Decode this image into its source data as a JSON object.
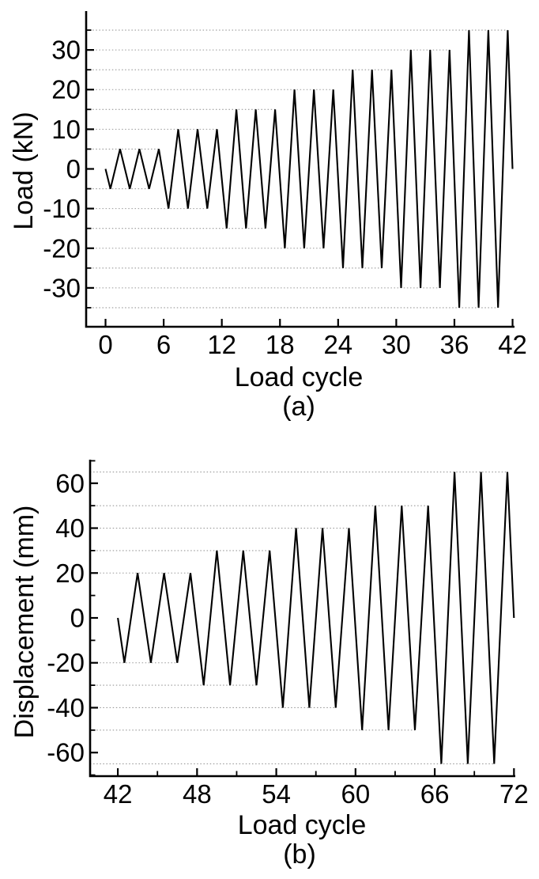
{
  "page": {
    "background": "#ffffff",
    "figure_type": "two-panel cyclic loading protocol figure"
  },
  "chart_data": [
    {
      "type": "line",
      "panel_label": "(a)",
      "xlabel": "Load cycle",
      "ylabel": "Load (kN)",
      "line_color": "#000000",
      "grid_color": "#999999",
      "grid_style": "dotted",
      "xlim": [
        -2,
        42.2
      ],
      "ylim": [
        -39.8,
        39.8
      ],
      "x_ticks": {
        "major": [
          0,
          6,
          12,
          18,
          24,
          30,
          36,
          42
        ],
        "labels": [
          "0",
          "6",
          "12",
          "18",
          "24",
          "30",
          "36",
          "42"
        ],
        "minor": []
      },
      "y_ticks": {
        "major": [
          -30,
          -20,
          -10,
          0,
          10,
          20,
          30
        ],
        "labels": [
          "-30",
          "-20",
          "-10",
          "0",
          "10",
          "20",
          "30"
        ],
        "minor_step": 5
      },
      "protocol": {
        "x_start": 0,
        "x_end": 42,
        "cycles_per_amplitude": 3,
        "amplitudes": [
          5,
          10,
          15,
          20,
          25,
          30,
          35
        ]
      },
      "points": [
        [
          0,
          0
        ],
        [
          0.5,
          -5
        ],
        [
          1.5,
          5
        ],
        [
          2.5,
          -5
        ],
        [
          3.5,
          5
        ],
        [
          4.5,
          -5
        ],
        [
          5.5,
          5
        ],
        [
          6.5,
          -10
        ],
        [
          7.5,
          10
        ],
        [
          8.5,
          -10
        ],
        [
          9.5,
          10
        ],
        [
          10.5,
          -10
        ],
        [
          11.5,
          10
        ],
        [
          12.5,
          -15
        ],
        [
          13.5,
          15
        ],
        [
          14.5,
          -15
        ],
        [
          15.5,
          15
        ],
        [
          16.5,
          -15
        ],
        [
          17.5,
          15
        ],
        [
          18.5,
          -20
        ],
        [
          19.5,
          20
        ],
        [
          20.5,
          -20
        ],
        [
          21.5,
          20
        ],
        [
          22.5,
          -20
        ],
        [
          23.5,
          20
        ],
        [
          24.5,
          -25
        ],
        [
          25.5,
          25
        ],
        [
          26.5,
          -25
        ],
        [
          27.5,
          25
        ],
        [
          28.5,
          -25
        ],
        [
          29.5,
          25
        ],
        [
          30.5,
          -30
        ],
        [
          31.5,
          30
        ],
        [
          32.5,
          -30
        ],
        [
          33.5,
          30
        ],
        [
          34.5,
          -30
        ],
        [
          35.5,
          30
        ],
        [
          36.5,
          -35
        ],
        [
          37.5,
          35
        ],
        [
          38.5,
          -35
        ],
        [
          39.5,
          35
        ],
        [
          40.5,
          -35
        ],
        [
          41.5,
          35
        ],
        [
          42,
          0
        ]
      ],
      "ref_lines": [
        [
          5,
          5.5
        ],
        [
          -5,
          4.5
        ],
        [
          10,
          11.5
        ],
        [
          -10,
          10.5
        ],
        [
          15,
          17.5
        ],
        [
          -15,
          16.5
        ],
        [
          20,
          23.5
        ],
        [
          -20,
          22.5
        ],
        [
          25,
          29.5
        ],
        [
          -25,
          28.5
        ],
        [
          30,
          35.5
        ],
        [
          -30,
          34.5
        ],
        [
          35,
          41.5
        ],
        [
          -35,
          40.5
        ]
      ]
    },
    {
      "type": "line",
      "panel_label": "(b)",
      "xlabel": "Load cycle",
      "ylabel": "Displacement (mm)",
      "line_color": "#000000",
      "grid_color": "#999999",
      "grid_style": "dotted",
      "xlim": [
        39.9,
        72.1
      ],
      "ylim": [
        -70.5,
        70.5
      ],
      "x_ticks": {
        "major": [
          42,
          48,
          54,
          60,
          66,
          72
        ],
        "labels": [
          "42",
          "48",
          "54",
          "60",
          "66",
          "72"
        ],
        "minor": [
          45,
          51,
          57,
          63,
          69
        ]
      },
      "y_ticks": {
        "major": [
          -60,
          -40,
          -20,
          0,
          20,
          40,
          60
        ],
        "labels": [
          "-60",
          "-40",
          "-20",
          "0",
          "20",
          "40",
          "60"
        ],
        "minor_step": 10
      },
      "protocol": {
        "x_start": 42,
        "x_end": 72,
        "cycles_per_amplitude": 3,
        "amplitudes": [
          20,
          30,
          40,
          50,
          65
        ]
      },
      "points": [
        [
          42,
          0
        ],
        [
          42.5,
          -20
        ],
        [
          43.5,
          20
        ],
        [
          44.5,
          -20
        ],
        [
          45.5,
          20
        ],
        [
          46.5,
          -20
        ],
        [
          47.5,
          20
        ],
        [
          48.5,
          -30
        ],
        [
          49.5,
          30
        ],
        [
          50.5,
          -30
        ],
        [
          51.5,
          30
        ],
        [
          52.5,
          -30
        ],
        [
          53.5,
          30
        ],
        [
          54.5,
          -40
        ],
        [
          55.5,
          40
        ],
        [
          56.5,
          -40
        ],
        [
          57.5,
          40
        ],
        [
          58.5,
          -40
        ],
        [
          59.5,
          40
        ],
        [
          60.5,
          -50
        ],
        [
          61.5,
          50
        ],
        [
          62.5,
          -50
        ],
        [
          63.5,
          50
        ],
        [
          64.5,
          -50
        ],
        [
          65.5,
          50
        ],
        [
          66.5,
          -65
        ],
        [
          67.5,
          65
        ],
        [
          68.5,
          -65
        ],
        [
          69.5,
          65
        ],
        [
          70.5,
          -65
        ],
        [
          71.5,
          65
        ],
        [
          72,
          0
        ]
      ],
      "ref_lines": [
        [
          20,
          47.5
        ],
        [
          -20,
          46.5
        ],
        [
          30,
          53.5
        ],
        [
          -30,
          52.5
        ],
        [
          40,
          59.5
        ],
        [
          -40,
          58.5
        ],
        [
          50,
          65.5
        ],
        [
          -50,
          64.5
        ],
        [
          65,
          71.5
        ],
        [
          -65,
          70.5
        ]
      ]
    }
  ]
}
